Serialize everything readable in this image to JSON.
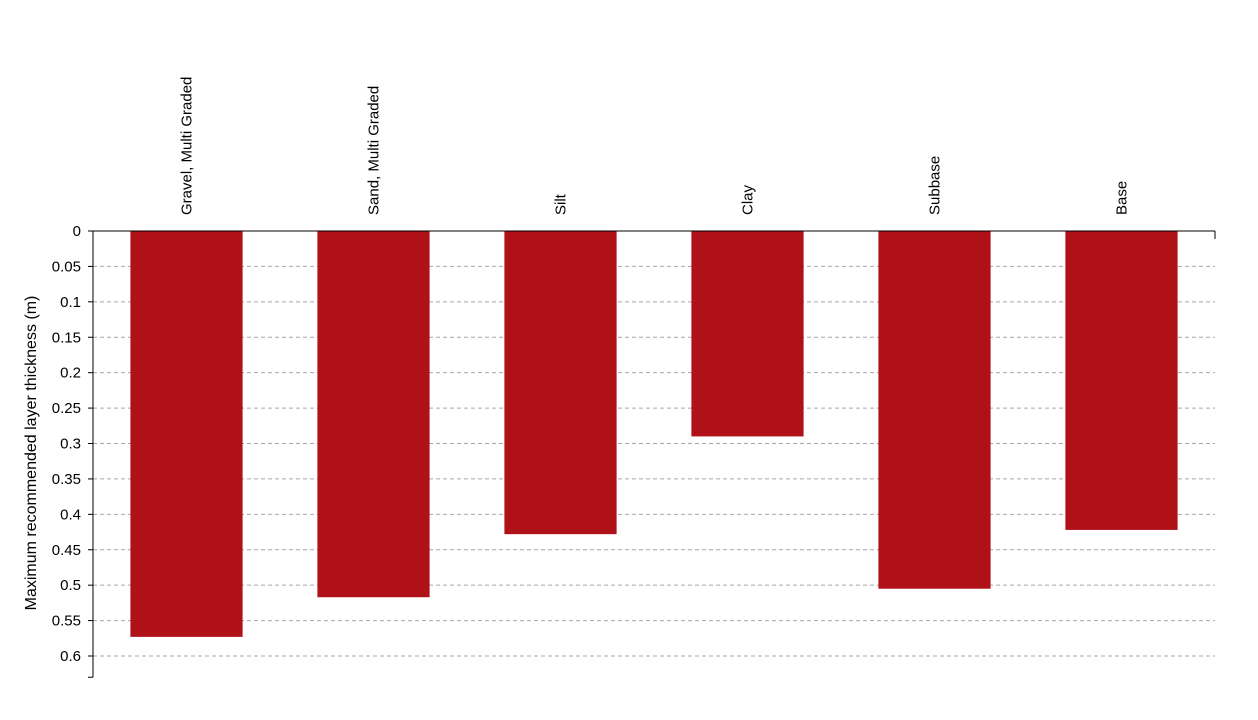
{
  "chart_data": {
    "type": "bar",
    "orientation": "vertical",
    "inverted_y_axis": true,
    "categories": [
      "Gravel, Multi Graded",
      "Sand, Multi Graded",
      "Silt",
      "Clay",
      "Subbase",
      "Base"
    ],
    "values": [
      0.573,
      0.517,
      0.428,
      0.29,
      0.505,
      0.422
    ],
    "title": "",
    "xlabel": "",
    "ylabel": "Maximum recommended layer thickness (m)",
    "ylim": [
      0,
      0.63
    ],
    "yticks": [
      "0",
      "0.05",
      "0.1",
      "0.15",
      "0.2",
      "0.25",
      "0.3",
      "0.35",
      "0.4",
      "0.45",
      "0.5",
      "0.55",
      "0.6"
    ],
    "category_axis_position": "top",
    "grid": "horizontal dashed",
    "legend": "none",
    "bar_color": "#b01118",
    "grid_color": "#a6a6a6"
  }
}
